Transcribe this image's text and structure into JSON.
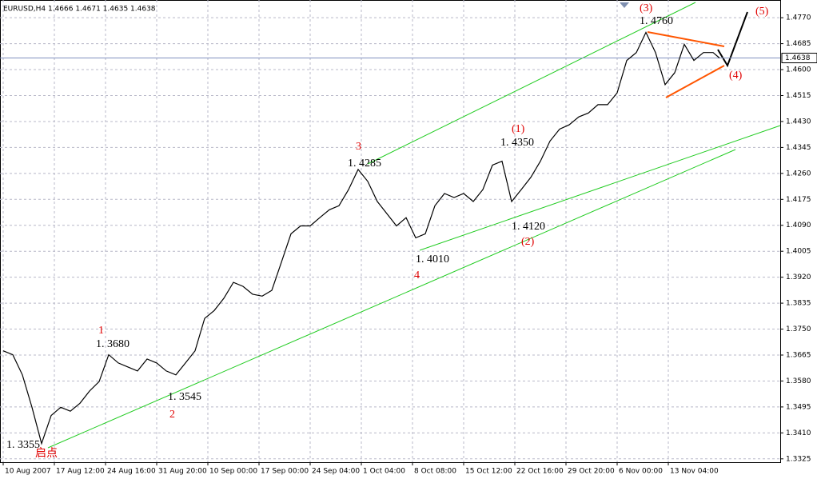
{
  "chart_data": {
    "type": "line",
    "title": "EURUSD,H4  1.4666 1.4671 1.4635 1.4638",
    "current_price": {
      "value": 1.4638,
      "label": "1.4638"
    },
    "x": [
      1,
      4,
      7,
      10,
      13,
      16,
      19,
      22,
      25,
      28,
      31,
      34,
      37,
      40,
      43,
      46,
      49,
      52,
      55,
      58,
      61,
      64,
      67,
      70,
      73,
      76,
      79,
      82,
      85,
      88,
      91,
      94,
      97,
      100,
      103,
      106,
      109,
      112,
      115,
      118,
      121,
      124,
      127,
      130,
      133,
      136,
      139,
      142,
      145,
      148,
      151,
      154,
      157,
      160,
      163,
      166,
      169,
      172,
      175,
      178,
      181,
      184,
      187,
      190,
      193,
      196,
      199,
      202,
      205,
      208,
      211,
      214,
      217,
      220,
      223,
      225
    ],
    "series": [
      {
        "name": "EURUSD",
        "color": "#000000",
        "values": [
          1.3679,
          1.3666,
          1.36,
          1.3494,
          1.3375,
          1.3467,
          1.3494,
          1.3481,
          1.3507,
          1.3547,
          1.3578,
          1.3666,
          1.3639,
          1.3626,
          1.3613,
          1.3652,
          1.3639,
          1.3613,
          1.36,
          1.3639,
          1.3679,
          1.3785,
          1.3811,
          1.3851,
          1.3903,
          1.389,
          1.3864,
          1.3858,
          1.3877,
          1.3969,
          1.4062,
          1.4088,
          1.4088,
          1.4115,
          1.4141,
          1.4154,
          1.4207,
          1.4273,
          1.4234,
          1.4168,
          1.4128,
          1.4088,
          1.4115,
          1.4049,
          1.4062,
          1.4154,
          1.4194,
          1.4181,
          1.4194,
          1.4168,
          1.4207,
          1.4287,
          1.43,
          1.4168,
          1.4207,
          1.4247,
          1.43,
          1.4366,
          1.4405,
          1.4419,
          1.4445,
          1.4458,
          1.4485,
          1.4485,
          1.4524,
          1.463,
          1.4656,
          1.4722,
          1.4656,
          1.4551,
          1.459,
          1.4683,
          1.463,
          1.4656,
          1.4656,
          1.4638
        ]
      }
    ],
    "xlim": [
      0,
      244
    ],
    "xticks": [
      {
        "value": 1,
        "label": "10 Aug 2007"
      },
      {
        "value": 17,
        "label": "17 Aug 12:00"
      },
      {
        "value": 33,
        "label": "24 Aug 16:00"
      },
      {
        "value": 49,
        "label": "31 Aug 20:00"
      },
      {
        "value": 65,
        "label": "10 Sep 00:00"
      },
      {
        "value": 81,
        "label": "17 Sep 00:00"
      },
      {
        "value": 97,
        "label": "24 Sep 04:00"
      },
      {
        "value": 113,
        "label": "1 Oct 04:00"
      },
      {
        "value": 129,
        "label": "8 Oct 08:00"
      },
      {
        "value": 145,
        "label": "15 Oct 12:00"
      },
      {
        "value": 161,
        "label": "22 Oct 16:00"
      },
      {
        "value": 177,
        "label": "29 Oct 20:00"
      },
      {
        "value": 193,
        "label": "6 Nov 00:00"
      },
      {
        "value": 209,
        "label": "13 Nov 04:00"
      }
    ],
    "ylim": [
      1.3314,
      1.4828
    ],
    "yticks": [
      {
        "value": 1.3325,
        "label": "1.3325"
      },
      {
        "value": 1.341,
        "label": "1.3410"
      },
      {
        "value": 1.3495,
        "label": "1.3495"
      },
      {
        "value": 1.358,
        "label": "1.3580"
      },
      {
        "value": 1.3665,
        "label": "1.3665"
      },
      {
        "value": 1.375,
        "label": "1.3750"
      },
      {
        "value": 1.3835,
        "label": "1.3835"
      },
      {
        "value": 1.392,
        "label": "1.3920"
      },
      {
        "value": 1.4005,
        "label": "1.4005"
      },
      {
        "value": 1.409,
        "label": "1.4090"
      },
      {
        "value": 1.4175,
        "label": "1.4175"
      },
      {
        "value": 1.426,
        "label": "1.4260"
      },
      {
        "value": 1.4345,
        "label": "1.4345"
      },
      {
        "value": 1.443,
        "label": "1.4430"
      },
      {
        "value": 1.4515,
        "label": "1.4515"
      },
      {
        "value": 1.46,
        "label": "1.4600"
      },
      {
        "value": 1.4685,
        "label": "1.4685"
      },
      {
        "value": 1.477,
        "label": "1.4770"
      }
    ],
    "grid": true,
    "annotations": [
      "1",
      "1. 3680",
      "2",
      "1. 3545",
      "3",
      "1. 4285",
      "4",
      "1. 4010",
      "(1)",
      "1. 4350",
      "(2)",
      "1. 4120",
      "(3)",
      "1. 4760",
      "(4)",
      "(5)",
      "1. 3355",
      "启点"
    ]
  }
}
